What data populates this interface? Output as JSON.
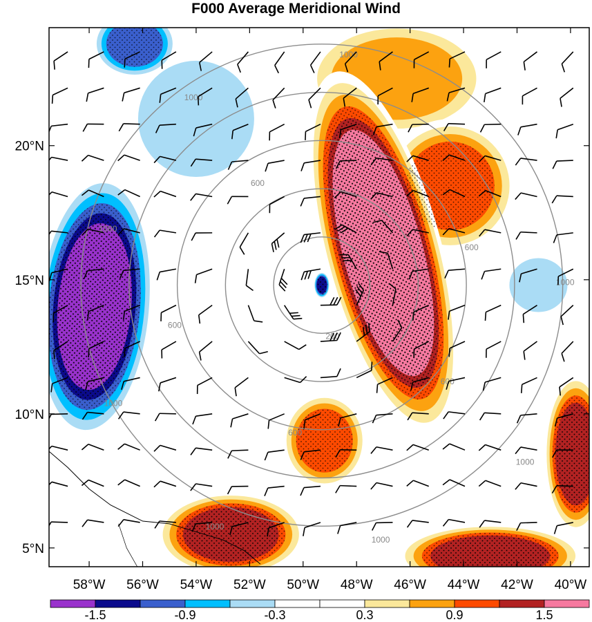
{
  "title": "F000 Average Meridional Wind",
  "map": {
    "lon_range": [
      -59.5,
      -39.3
    ],
    "lat_range": [
      4.3,
      24.4
    ],
    "lon_ticks": [
      {
        "value": -58,
        "label": "58°W"
      },
      {
        "value": -56,
        "label": "56°W"
      },
      {
        "value": -54,
        "label": "54°W"
      },
      {
        "value": -52,
        "label": "52°W"
      },
      {
        "value": -50,
        "label": "50°W"
      },
      {
        "value": -48,
        "label": "48°W"
      },
      {
        "value": -46,
        "label": "46°W"
      },
      {
        "value": -44,
        "label": "44°W"
      },
      {
        "value": -42,
        "label": "42°W"
      },
      {
        "value": -40,
        "label": "40°W"
      }
    ],
    "lat_ticks": [
      {
        "value": 5,
        "label": "5°N"
      },
      {
        "value": 10,
        "label": "10°N"
      },
      {
        "value": 15,
        "label": "15°N"
      },
      {
        "value": 20,
        "label": "20°N"
      }
    ],
    "storm_center": {
      "lon": -49.3,
      "lat": 14.8
    },
    "range_rings": {
      "radii": [
        200,
        400,
        600,
        800,
        1000
      ],
      "labels": [
        {
          "text": "200",
          "lon": -48.9,
          "lat": 12.9
        },
        {
          "text": "600",
          "lon": -51.7,
          "lat": 18.6
        },
        {
          "text": "600",
          "lon": -54.8,
          "lat": 13.3
        },
        {
          "text": "600",
          "lon": -50.3,
          "lat": 9.3
        },
        {
          "text": "600",
          "lon": -44.6,
          "lat": 11.2
        },
        {
          "text": "600",
          "lon": -43.7,
          "lat": 16.2
        },
        {
          "text": "1000",
          "lon": -48.3,
          "lat": 23.4
        },
        {
          "text": "1000",
          "lon": -54.1,
          "lat": 21.8
        },
        {
          "text": "1000",
          "lon": -57.3,
          "lat": 16.9
        },
        {
          "text": "1000",
          "lon": -57.1,
          "lat": 10.4
        },
        {
          "text": "1000",
          "lon": -53.3,
          "lat": 5.8
        },
        {
          "text": "1000",
          "lon": -47.1,
          "lat": 5.3
        },
        {
          "text": "1000",
          "lon": -41.7,
          "lat": 8.2
        },
        {
          "text": "1000",
          "lon": -40.2,
          "lat": 14.9
        }
      ]
    },
    "shading_features": [
      {
        "v": 2.0,
        "lon": -47.0,
        "lat": 16.0,
        "sx": 2.2,
        "sy": 7.0,
        "rot": -15
      },
      {
        "v": 1.2,
        "lon": -44.5,
        "lat": 18.5,
        "sx": 2.5,
        "sy": 2.5,
        "rot": 0
      },
      {
        "v": 1.0,
        "lon": -46.5,
        "lat": 22.5,
        "sx": 3.5,
        "sy": 2.2,
        "rot": 0
      },
      {
        "v": 1.2,
        "lon": -49.2,
        "lat": 9.0,
        "sx": 1.6,
        "sy": 1.8,
        "rot": 0
      },
      {
        "v": 1.6,
        "lon": -52.7,
        "lat": 5.5,
        "sx": 2.8,
        "sy": 1.6,
        "rot": 0
      },
      {
        "v": 1.4,
        "lon": -43.0,
        "lat": 4.7,
        "sx": 3.5,
        "sy": 1.2,
        "rot": 0
      },
      {
        "v": 1.5,
        "lon": -39.8,
        "lat": 8.5,
        "sx": 1.2,
        "sy": 3.0,
        "rot": 0
      },
      {
        "v": -1.9,
        "lon": -57.8,
        "lat": 14.0,
        "sx": 2.2,
        "sy": 5.0,
        "rot": 5
      },
      {
        "v": -1.1,
        "lon": -56.3,
        "lat": 23.8,
        "sx": 1.6,
        "sy": 1.3,
        "rot": 0
      },
      {
        "v": -0.6,
        "lon": -54.0,
        "lat": 21.0,
        "sx": 2.8,
        "sy": 2.8,
        "rot": 0
      },
      {
        "v": -0.7,
        "lon": -41.2,
        "lat": 14.8,
        "sx": 1.4,
        "sy": 1.3,
        "rot": 0
      },
      {
        "v": -1.6,
        "lon": -49.3,
        "lat": 14.8,
        "sx": 0.3,
        "sy": 0.5,
        "rot": 0
      },
      {
        "v": 0.4,
        "lon": -54.0,
        "lat": 5.5,
        "sx": 6.0,
        "sy": 2.0,
        "rot": 0
      }
    ],
    "stipple_threshold": 0.9
  },
  "colorbar": {
    "colors": [
      "#9932cc",
      "#0b0b8c",
      "#3a5fcd",
      "#00bfff",
      "#aadcf5",
      "#ffffff",
      "#ffffff",
      "#fbe89b",
      "#fca210",
      "#fd4a00",
      "#b22222",
      "#f6799f"
    ],
    "labels": [
      "-1.5",
      "-0.9",
      "-0.3",
      "0.3",
      "0.9",
      "1.5"
    ]
  }
}
